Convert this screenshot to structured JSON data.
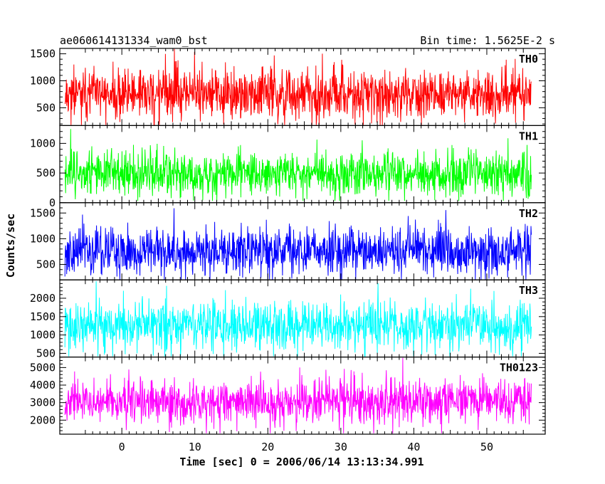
{
  "chart_data": {
    "type": "line",
    "title_left": "ae060614131334_wam0_bst",
    "title_right": "Bin time: 1.5625E-2 s",
    "xlabel": "Time [sec] 0 = 2006/06/14 13:13:34.991",
    "ylabel": "Counts/sec",
    "xlim": [
      -8.5,
      58
    ],
    "x_range": [
      -7.8,
      56.1
    ],
    "x_ticks": [
      0,
      10,
      20,
      30,
      40,
      50
    ],
    "grid": false,
    "series": [
      {
        "name": "TH0",
        "color": "#ff0000",
        "ylim": [
          170,
          1600
        ],
        "yticks": [
          500,
          1000,
          1500
        ],
        "mean": 750,
        "noise": 240,
        "min": 180,
        "max": 1590,
        "seed": 11
      },
      {
        "name": "TH1",
        "color": "#00ff00",
        "ylim": [
          0,
          1300
        ],
        "yticks": [
          0,
          500,
          1000
        ],
        "mean": 500,
        "noise": 190,
        "min": 30,
        "max": 1290,
        "seed": 23
      },
      {
        "name": "TH2",
        "color": "#0000ff",
        "ylim": [
          200,
          1700
        ],
        "yticks": [
          500,
          1000,
          1500
        ],
        "mean": 760,
        "noise": 230,
        "min": 210,
        "max": 1690,
        "seed": 37
      },
      {
        "name": "TH3",
        "color": "#00ffff",
        "ylim": [
          400,
          2500
        ],
        "yticks": [
          500,
          1000,
          1500,
          2000
        ],
        "mean": 1250,
        "noise": 330,
        "min": 420,
        "max": 2490,
        "seed": 41
      },
      {
        "name": "TH0123",
        "color": "#ff00ff",
        "ylim": [
          1200,
          5600
        ],
        "yticks": [
          2000,
          3000,
          4000,
          5000
        ],
        "mean": 3100,
        "noise": 620,
        "min": 1250,
        "max": 5550,
        "seed": 53
      }
    ]
  }
}
